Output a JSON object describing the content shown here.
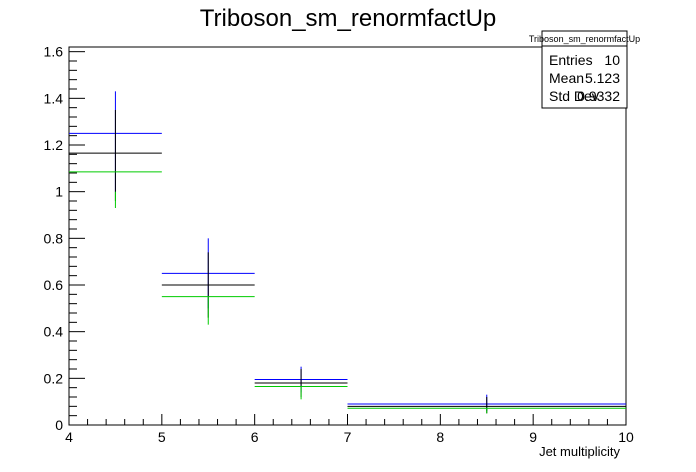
{
  "chart_data": {
    "type": "histogram",
    "title": "Triboson_sm_renormfactUp",
    "xlabel": "Jet multiplicity",
    "ylabel": "",
    "xlim": [
      4,
      10
    ],
    "ylim": [
      0,
      1.62
    ],
    "x_ticks": [
      "4",
      "5",
      "6",
      "7",
      "8",
      "9",
      "10"
    ],
    "y_ticks": [
      "0",
      "0.2",
      "0.4",
      "0.6",
      "0.8",
      "1",
      "1.2",
      "1.4",
      "1.6"
    ],
    "series": [
      {
        "color": "#0000ff",
        "bins": [
          {
            "x0": 4,
            "x1": 5,
            "y": 1.25,
            "xc": 4.5,
            "err_lo": 1.0,
            "err_hi": 1.43
          },
          {
            "x0": 5,
            "x1": 6,
            "y": 0.65,
            "xc": 5.5,
            "err_lo": 0.5,
            "err_hi": 0.8
          },
          {
            "x0": 6,
            "x1": 7,
            "y": 0.195,
            "xc": 6.5,
            "err_lo": 0.14,
            "err_hi": 0.25
          },
          {
            "x0": 7,
            "x1": 10,
            "y": 0.09,
            "xc": 8.5,
            "err_lo": 0.06,
            "err_hi": 0.13
          }
        ]
      },
      {
        "color": "#000000",
        "bins": [
          {
            "x0": 4,
            "x1": 5,
            "y": 1.165,
            "xc": 4.5,
            "err_lo": 0.96,
            "err_hi": 1.35
          },
          {
            "x0": 5,
            "x1": 6,
            "y": 0.6,
            "xc": 5.5,
            "err_lo": 0.46,
            "err_hi": 0.74
          },
          {
            "x0": 6,
            "x1": 7,
            "y": 0.18,
            "xc": 6.5,
            "err_lo": 0.12,
            "err_hi": 0.24
          },
          {
            "x0": 7,
            "x1": 10,
            "y": 0.08,
            "xc": 8.5,
            "err_lo": 0.05,
            "err_hi": 0.12
          }
        ]
      },
      {
        "color": "#00cc00",
        "bins": [
          {
            "x0": 4,
            "x1": 5,
            "y": 1.085,
            "xc": 4.5,
            "err_lo": 0.93,
            "err_hi": 1.0
          },
          {
            "x0": 5,
            "x1": 6,
            "y": 0.55,
            "xc": 5.5,
            "err_lo": 0.43,
            "err_hi": 0.55
          },
          {
            "x0": 6,
            "x1": 7,
            "y": 0.165,
            "xc": 6.5,
            "err_lo": 0.11,
            "err_hi": 0.165
          },
          {
            "x0": 7,
            "x1": 10,
            "y": 0.072,
            "xc": 8.5,
            "err_lo": 0.05,
            "err_hi": 0.072
          }
        ]
      }
    ],
    "stats_box": {
      "title": "Triboson_sm_renormfactUp",
      "rows": [
        {
          "label": "Entries",
          "value": "10"
        },
        {
          "label": "Mean",
          "value": "5.123"
        },
        {
          "label": "Std Dev",
          "value": "0.9332"
        }
      ]
    }
  }
}
